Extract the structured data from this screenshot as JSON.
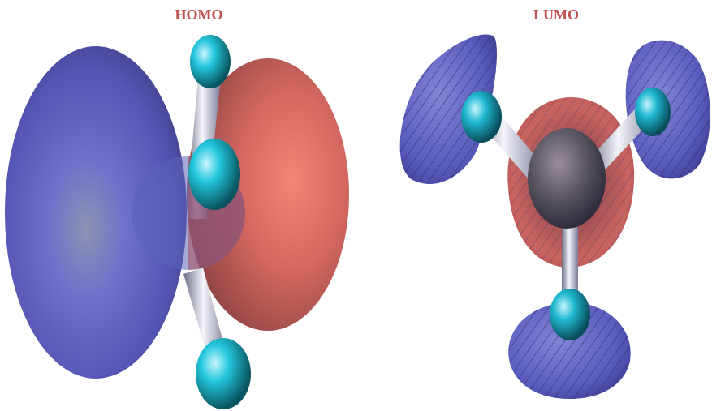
{
  "homo": {
    "title": "HOMO"
  },
  "lumo": {
    "title": "LUMO"
  },
  "colors": {
    "title": "#c0504d",
    "negative_lobe": "#6a6ad8",
    "positive_lobe": "#d9605a",
    "hydrogen": "#22c6dc",
    "carbon": "#7a6f80",
    "bond": "#c9cbdc"
  }
}
